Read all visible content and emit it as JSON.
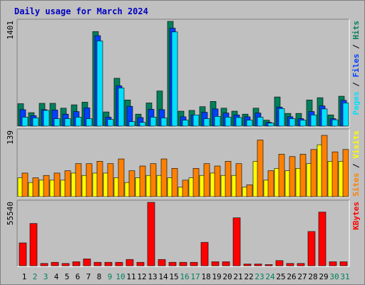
{
  "chart_data": {
    "type": "bar",
    "title": "Daily usage for March 2024",
    "colors": {
      "background": "#c0c0c0",
      "title": "#0000c0",
      "hits": "#00805c",
      "files": "#0040ff",
      "pages": "#00e0ff",
      "visits": "#ffff00",
      "sites": "#ff8000",
      "kbytes": "#ff0000",
      "weekend_day": "#00805c",
      "weekday": "#000000"
    },
    "days": [
      "1",
      "2",
      "3",
      "4",
      "5",
      "6",
      "7",
      "8",
      "9",
      "10",
      "11",
      "12",
      "13",
      "14",
      "15",
      "16",
      "17",
      "18",
      "19",
      "20",
      "21",
      "22",
      "23",
      "24",
      "25",
      "26",
      "27",
      "28",
      "29",
      "30",
      "31"
    ],
    "weekend_days": [
      "2",
      "3",
      "9",
      "10",
      "16",
      "17",
      "23",
      "24",
      "30",
      "31"
    ],
    "panels": [
      {
        "id": "top",
        "ymax_label": "1401",
        "ymax": 1401,
        "side_labels": [
          {
            "text": "Pages",
            "color_key": "pages"
          },
          {
            "text": " / ",
            "color_key": "weekday"
          },
          {
            "text": "Files",
            "color_key": "files"
          },
          {
            "text": " / ",
            "color_key": "weekday"
          },
          {
            "text": "Hits",
            "color_key": "hits"
          }
        ],
        "series": [
          {
            "key": "hits",
            "values": [
              300,
              180,
              305,
              305,
              240,
              285,
              320,
              1265,
              190,
              640,
              350,
              160,
              310,
              470,
              1401,
              200,
              210,
              260,
              330,
              240,
              200,
              160,
              240,
              80,
              390,
              170,
              170,
              350,
              380,
              150,
              400
            ]
          },
          {
            "key": "files",
            "values": [
              220,
              140,
              220,
              215,
              160,
              195,
              245,
              1210,
              120,
              540,
              265,
              115,
              225,
              220,
              1310,
              125,
              150,
              185,
              230,
              175,
              150,
              125,
              175,
              50,
              255,
              125,
              100,
              195,
              270,
              100,
              345
            ]
          },
          {
            "key": "pages",
            "values": [
              120,
              110,
              210,
              100,
              100,
              120,
              100,
              1140,
              90,
              510,
              60,
              50,
              120,
              110,
              1260,
              80,
              150,
              100,
              130,
              120,
              115,
              80,
              120,
              40,
              235,
              100,
              80,
              150,
              230,
              85,
              310
            ]
          }
        ]
      },
      {
        "id": "middle",
        "ymax_label": "139",
        "ymax": 139,
        "side_labels": [
          {
            "text": "Sites",
            "color_key": "sites"
          },
          {
            "text": " / ",
            "color_key": "weekday"
          },
          {
            "text": "Visits",
            "color_key": "visits"
          }
        ],
        "series": [
          {
            "key": "visits",
            "values": [
              40,
              30,
              35,
              35,
              35,
              50,
              45,
              50,
              50,
              40,
              30,
              40,
              45,
              45,
              40,
              20,
              40,
              45,
              50,
              45,
              45,
              20,
              75,
              35,
              60,
              55,
              60,
              70,
              110,
              75,
              75
            ]
          },
          {
            "key": "sites",
            "values": [
              50,
              40,
              45,
              50,
              55,
              70,
              70,
              75,
              70,
              80,
              55,
              65,
              70,
              80,
              60,
              35,
              60,
              70,
              65,
              75,
              70,
              25,
              120,
              55,
              90,
              85,
              90,
              100,
              130,
              95,
              100
            ]
          }
        ]
      },
      {
        "id": "bottom",
        "ymax_label": "55540",
        "ymax": 55540,
        "side_labels": [
          {
            "text": "KBytes",
            "color_key": "kbytes"
          }
        ],
        "series": [
          {
            "key": "kbytes",
            "values": [
              20000,
              37000,
              2000,
              3000,
              2000,
              3500,
              6000,
              3000,
              3000,
              3000,
              5500,
              3000,
              55540,
              5500,
              3000,
              3000,
              3000,
              20500,
              3500,
              3500,
              42000,
              1500,
              1500,
              1000,
              4500,
              2000,
              2000,
              30000,
              47000,
              3500,
              3500
            ]
          }
        ]
      }
    ]
  }
}
